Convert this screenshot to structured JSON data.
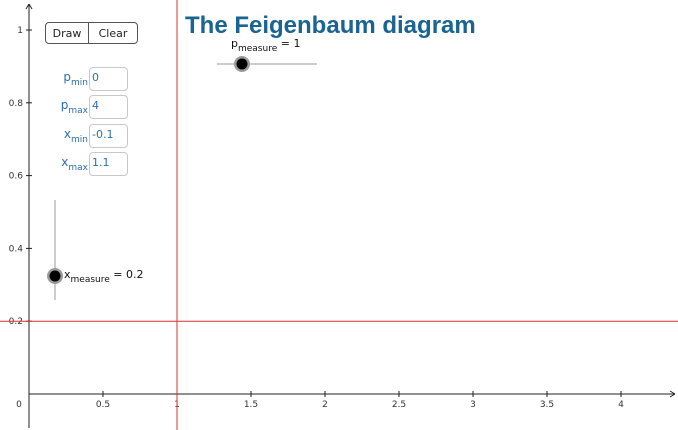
{
  "title": "The Feigenbaum diagram",
  "buttons": {
    "draw": "Draw",
    "clear": "Clear"
  },
  "fields": [
    {
      "name": "p",
      "sub": "min",
      "value": "0"
    },
    {
      "name": "p",
      "sub": "max",
      "value": "4"
    },
    {
      "name": "x",
      "sub": "min",
      "value": "-0.1"
    },
    {
      "name": "x",
      "sub": "max",
      "value": "1.1"
    }
  ],
  "sliders": {
    "p_measure": {
      "name": "p",
      "sub": "measure",
      "suffix": " = 1",
      "value": 1
    },
    "x_measure": {
      "name": "x",
      "sub": "measure",
      "suffix": " = 0.2",
      "value": 0.2
    }
  },
  "axes": {
    "x_ticks": [
      "0",
      "0.5",
      "1",
      "1.5",
      "2",
      "2.5",
      "3",
      "3.5",
      "4"
    ],
    "y_ticks": [
      "0.2",
      "0.4",
      "0.6",
      "0.8",
      "1"
    ]
  },
  "lines": {
    "vertical_at_p": 1,
    "horizontal_at_x": 0.2
  },
  "colors": {
    "title": "#1a6493",
    "label": "#2a6fb0",
    "marker_line": "#e03030"
  }
}
